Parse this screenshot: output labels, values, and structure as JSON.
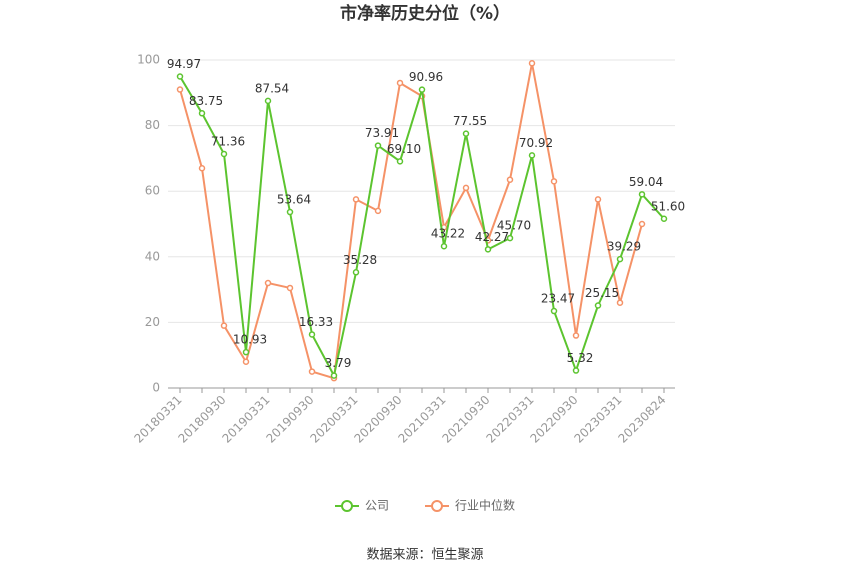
{
  "chart_data": {
    "type": "line",
    "title": "市净率历史分位（%）",
    "categories": [
      "20180331",
      null,
      "20180930",
      null,
      "20190331",
      null,
      "20190930",
      null,
      "20200331",
      null,
      "20200930",
      null,
      "20210331",
      null,
      "20210930",
      null,
      "20220331",
      null,
      "20220930",
      null,
      "20230331",
      null,
      "20230824"
    ],
    "series": [
      {
        "name": "公司",
        "color": "#5cc42f",
        "values": [
          94.97,
          83.75,
          71.36,
          10.93,
          87.54,
          53.64,
          16.33,
          3.79,
          35.28,
          73.91,
          69.1,
          90.96,
          43.22,
          77.55,
          42.27,
          45.7,
          70.92,
          23.47,
          5.32,
          25.15,
          39.29,
          59.04,
          51.6
        ],
        "value_labels": [
          "94.97",
          "83.75",
          "71.36",
          "10.93",
          "87.54",
          "53.64",
          "16.33",
          "3.79",
          "35.28",
          "73.91",
          "69.10",
          "90.96",
          "43.22",
          "77.55",
          "42.27",
          "45.70",
          "70.92",
          "23.47",
          "5.32",
          "25.15",
          "39.29",
          "59.04",
          "51.60"
        ]
      },
      {
        "name": "行业中位数",
        "color": "#f59267",
        "values": [
          91,
          67,
          19,
          8,
          32,
          30.5,
          5,
          3,
          57.5,
          54,
          93,
          89,
          49,
          61,
          45,
          63.5,
          99,
          63,
          16,
          57.5,
          26,
          50,
          null
        ]
      }
    ],
    "ylim": [
      0,
      100
    ],
    "yticks": [
      0,
      20,
      40,
      60,
      80,
      100
    ],
    "grid": true,
    "legend": "bottom",
    "source": "数据来源：恒生聚源"
  }
}
